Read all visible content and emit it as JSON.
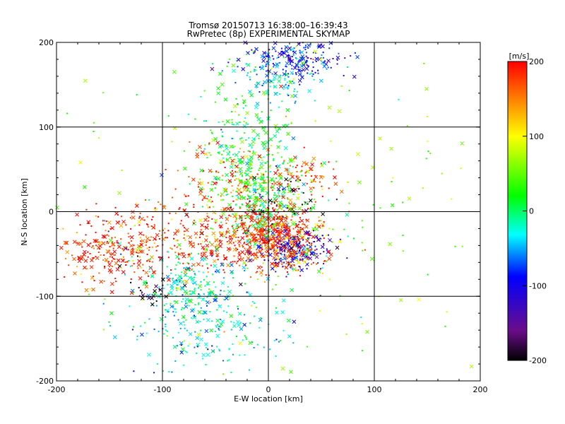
{
  "chart_data": {
    "type": "scatter",
    "title": "Tromsø 20150713 16:38:00–16:39:43",
    "subtitle": "RwPretec (8p) EXPERIMENTAL SKYMAP",
    "xlabel": "E-W location [km]",
    "ylabel": "N-S location [km]",
    "xlim": [
      -200,
      200
    ],
    "ylim": [
      -200,
      200
    ],
    "xticks": [
      "-200",
      "-100",
      "0",
      "100",
      "200"
    ],
    "yticks": [
      "-200",
      "-100",
      "0",
      "100",
      "200"
    ],
    "grid": true,
    "grid_lines": [
      -100,
      0,
      100
    ],
    "colorbar": {
      "label": "[m/s]",
      "range": [
        -200,
        200
      ],
      "ticks": [
        "200",
        "100",
        "0",
        "-100",
        "-200"
      ],
      "colormap": [
        "#000000",
        "#6a0d8a",
        "#0000ff",
        "#00ffff",
        "#00ff00",
        "#ffff00",
        "#ff0000"
      ]
    },
    "clusters": [
      {
        "center": [
          0,
          -25
        ],
        "spread": [
          22,
          18
        ],
        "n": 520,
        "velocity": 185
      },
      {
        "center": [
          -10,
          15
        ],
        "spread": [
          20,
          25
        ],
        "n": 260,
        "velocity": 20
      },
      {
        "center": [
          25,
          -45
        ],
        "spread": [
          18,
          12
        ],
        "n": 160,
        "velocity": -110
      },
      {
        "center": [
          20,
          -50
        ],
        "spread": [
          20,
          14
        ],
        "n": 110,
        "velocity": 185
      },
      {
        "center": [
          -20,
          80
        ],
        "spread": [
          22,
          40
        ],
        "n": 240,
        "velocity": 15
      },
      {
        "center": [
          25,
          180
        ],
        "spread": [
          25,
          12
        ],
        "n": 230,
        "velocity": -90
      },
      {
        "center": [
          5,
          150
        ],
        "spread": [
          15,
          12
        ],
        "n": 70,
        "velocity": -40
      },
      {
        "center": [
          -150,
          -45
        ],
        "spread": [
          25,
          22
        ],
        "n": 230,
        "velocity": 185
      },
      {
        "center": [
          -75,
          -30
        ],
        "spread": [
          30,
          25
        ],
        "n": 250,
        "velocity": 175
      },
      {
        "center": [
          -75,
          -90
        ],
        "spread": [
          22,
          20
        ],
        "n": 180,
        "velocity": -20
      },
      {
        "center": [
          -55,
          -135
        ],
        "spread": [
          40,
          30
        ],
        "n": 200,
        "velocity": -30
      },
      {
        "center": [
          -30,
          35
        ],
        "spread": [
          30,
          20
        ],
        "n": 90,
        "velocity": 170
      },
      {
        "center": [
          -110,
          -95
        ],
        "spread": [
          10,
          8
        ],
        "n": 25,
        "velocity": -200
      },
      {
        "center": [
          15,
          15
        ],
        "spread": [
          15,
          15
        ],
        "n": 40,
        "velocity": -200
      },
      {
        "center": [
          40,
          40
        ],
        "spread": [
          20,
          15
        ],
        "n": 60,
        "velocity": 185
      },
      {
        "center": [
          0,
          0
        ],
        "spread": [
          110,
          90
        ],
        "n": 230,
        "velocity": 60
      }
    ]
  }
}
